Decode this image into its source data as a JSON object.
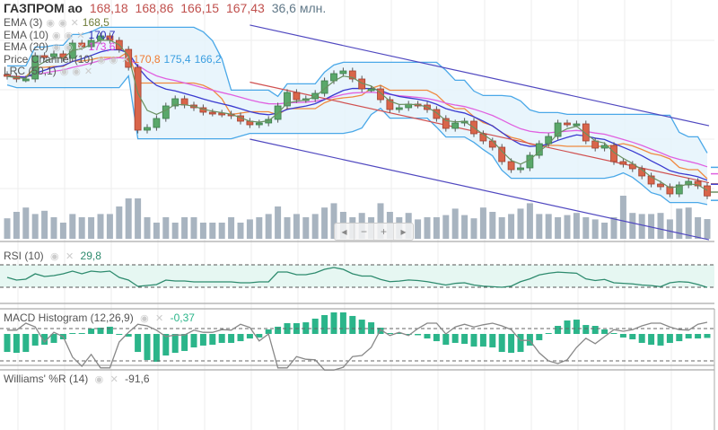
{
  "header": {
    "ticker": "ГАЗПРОМ ао",
    "open": "168,18",
    "high": "168,86",
    "low": "166,15",
    "close": "167,43",
    "volume": "36,6 млн."
  },
  "indicators": [
    {
      "label": "EMA (3)",
      "values": [
        "168,5"
      ],
      "colors": [
        "#6f7d3a"
      ]
    },
    {
      "label": "EMA (10)",
      "values": [
        "170,7"
      ],
      "colors": [
        "#2a2ab8"
      ]
    },
    {
      "label": "EMA (20)",
      "values": [
        "173,6"
      ],
      "colors": [
        "#e040e0"
      ]
    },
    {
      "label": "Price Channel (10)",
      "values": [
        "170,8",
        "175,4",
        "166,2"
      ],
      "colors": [
        "#f07a30",
        "#3a9ee0",
        "#3a9ee0"
      ]
    },
    {
      "label": "LRC (50,1)",
      "values": [],
      "colors": []
    }
  ],
  "panels": {
    "rsi": {
      "label": "RSI (10)",
      "value": "29,8"
    },
    "macd": {
      "label": "MACD Histogram (12,26,9)",
      "value": "-0,37"
    },
    "williams": {
      "label": "Williams' %R (14)",
      "value": "-91,6"
    }
  },
  "icons": {
    "eye": "eye-icon",
    "close": "close-icon"
  },
  "scroll_controls": [
    "◂",
    "−",
    "+",
    "▸"
  ],
  "colors": {
    "up": "#5aa86a",
    "down": "#d9654a",
    "ema3": "#6a9060",
    "ema10": "#3a3ad0",
    "ema20": "#e060e0",
    "pc_mid": "#f08a40",
    "pc_band": "#4aa8e8",
    "lrc_mid": "#d05050",
    "lrc_band": "#5048c0",
    "volume": "#a8b4c0",
    "rsi": "#2e8b6e",
    "macd": "#2bb58a",
    "williams": "#888888"
  },
  "chart_data": {
    "type": "candlestick",
    "ylim": [
      162,
      217
    ],
    "closes": [
      200.75,
      200.0,
      200.0,
      206.5,
      206.25,
      207.0,
      205.75,
      210.0,
      209.0,
      210.75,
      212.0,
      210.75,
      208.25,
      203.25,
      185.75,
      186.5,
      189.0,
      192.5,
      194.5,
      192.75,
      192.0,
      190.75,
      190.5,
      190.25,
      189.75,
      188.25,
      187.25,
      187.75,
      188.75,
      192.5,
      196.25,
      194.25,
      194.5,
      196.0,
      199.5,
      201.5,
      202.25,
      200.0,
      197.25,
      197.25,
      194.25,
      191.5,
      192.0,
      193.0,
      192.75,
      191.5,
      189.0,
      186.25,
      187.75,
      188.25,
      184.75,
      182.75,
      181.0,
      177.0,
      174.75,
      175.25,
      178.75,
      182.0,
      184.0,
      187.75,
      187.5,
      187.5,
      182.75,
      180.75,
      181.5,
      177.0,
      176.25,
      175.0,
      173.0,
      170.75,
      170.0,
      168.0,
      170.5,
      171.5,
      170.25,
      167.43
    ],
    "volumes_mln": [
      38,
      50,
      58,
      46,
      52,
      40,
      30,
      46,
      40,
      40,
      46,
      46,
      60,
      75,
      75,
      40,
      30,
      40,
      30,
      40,
      40,
      30,
      30,
      30,
      40,
      30,
      36,
      40,
      46,
      60,
      40,
      46,
      40,
      46,
      58,
      66,
      50,
      40,
      48,
      40,
      66,
      50,
      40,
      48,
      36,
      40,
      40,
      44,
      56,
      44,
      38,
      58,
      50,
      40,
      46,
      56,
      66,
      46,
      46,
      40,
      44,
      48,
      40,
      36,
      30,
      40,
      80,
      48,
      46,
      46,
      48,
      36,
      56,
      58,
      40,
      36.6
    ],
    "rsi": [
      47.6,
      42.8,
      44.4,
      54,
      49.2,
      50.8,
      54,
      58.8,
      54,
      58.8,
      57.2,
      58.8,
      47.6,
      42.8,
      31.6,
      33.2,
      34.8,
      42.8,
      41.2,
      41.2,
      39.6,
      39.6,
      39.6,
      39.6,
      39.6,
      38,
      38,
      39.6,
      39.6,
      57.2,
      57.2,
      52.4,
      52.4,
      55.6,
      62,
      65.2,
      62,
      54,
      50,
      50,
      44,
      40,
      41,
      43,
      42,
      40,
      37,
      34,
      37,
      38,
      34,
      32,
      31,
      30,
      32,
      40,
      45,
      52,
      55,
      57,
      56,
      55,
      45,
      42,
      44,
      38,
      37,
      36,
      34,
      33,
      31,
      38,
      40,
      39,
      35,
      29.8
    ],
    "rsi_levels": [
      30,
      70
    ],
    "macd_hist": [
      -1.67,
      -1.75,
      -1.67,
      -1.08,
      -1.0,
      -0.83,
      -0.5,
      0,
      0.08,
      0.5,
      0.58,
      0.67,
      -0.08,
      -0.25,
      -1.67,
      -2.42,
      -2.58,
      -2.0,
      -1.75,
      -1.58,
      -1.25,
      -1.08,
      -1.0,
      -0.83,
      -0.83,
      -0.67,
      -0.42,
      -0.33,
      0.42,
      0.67,
      1.0,
      1.0,
      1.08,
      1.42,
      1.75,
      2.0,
      2.0,
      1.67,
      1.33,
      1.08,
      0.58,
      0,
      0.04,
      -0.08,
      -0.12,
      -0.42,
      -0.67,
      -1.0,
      -0.83,
      -0.92,
      -1.17,
      -1.17,
      -1.25,
      -1.67,
      -1.75,
      -1.67,
      -1.08,
      -0.58,
      0.08,
      0.75,
      1.25,
      1.33,
      0.83,
      0.75,
      0.42,
      0,
      -0.33,
      -0.5,
      -0.83,
      -1.0,
      -1.08,
      -0.83,
      -0.67,
      -0.42,
      -0.42,
      -0.37
    ],
    "williams_r": [
      -77,
      -77,
      -90,
      -83,
      -55,
      -73,
      -65,
      -27,
      -10,
      -32,
      -7,
      -7,
      -55,
      -73,
      -88,
      -85,
      -77,
      -65,
      -68,
      -68,
      -77,
      -73,
      -73,
      -78,
      -77,
      -88,
      -82,
      -57,
      -70,
      -7,
      -7,
      -28,
      -23,
      -22,
      -3,
      -3,
      -8,
      -28,
      -30,
      -45,
      -78,
      -67,
      -73,
      -67,
      -80,
      -90,
      -90,
      -70,
      -83,
      -88,
      -83,
      -87,
      -90,
      -85,
      -78,
      -58,
      -58,
      -35,
      -20,
      -15,
      -22,
      -45,
      -62,
      -52,
      -65,
      -78,
      -75,
      -78,
      -85,
      -90,
      -90,
      -83,
      -78,
      -77,
      -88,
      -91.6
    ],
    "williams_levels": [
      -80,
      -20
    ]
  }
}
